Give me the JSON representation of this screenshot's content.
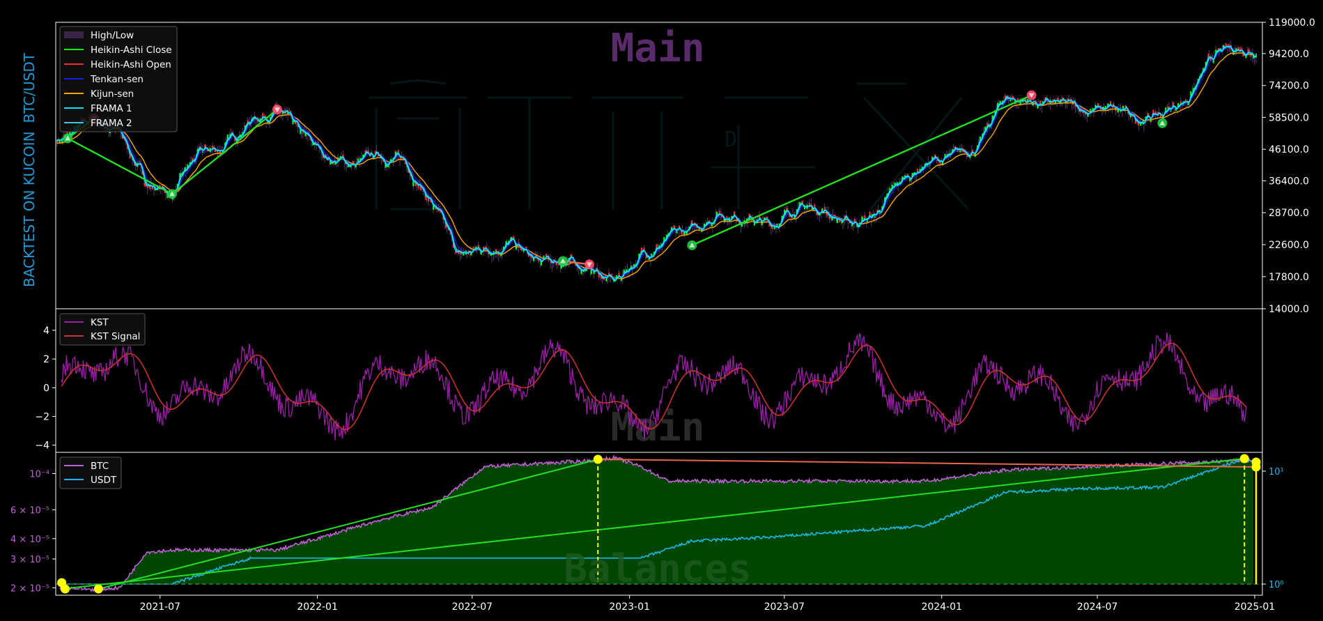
{
  "side_title": {
    "prefix": "BACKTEST ON KUCOIN",
    "pair": "BTC/USDT"
  },
  "colors": {
    "background": "#000000",
    "frame": "#ffffff",
    "title_cyan": "#1e9bd7",
    "main_watermark": "#5a2a6b",
    "kst": "#9b1fa6",
    "kst_signal": "#c8312e",
    "btc": "#c062d6",
    "usdt": "#1fb8e8",
    "trade_line": "#22e022",
    "loss_line": "#e8664a",
    "fill_green": "#004d00",
    "marker_yellow": "#ffff00",
    "buy_marker": "#22cc44",
    "sell_marker": "#ff4d6d",
    "ha_close": "#00ff00",
    "ha_open": "#ff2a2a",
    "tenkan": "#1a1aff",
    "kijun": "#ffa500",
    "frama1": "#00e5ff",
    "frama2": "#40c8e0"
  },
  "chart_data": [
    {
      "type": "line",
      "panel": "price",
      "watermark": "Main",
      "yscale": "log",
      "ylim": [
        14000,
        119000
      ],
      "yticks": [
        "119000.0",
        "94200.0",
        "74200.0",
        "58500.0",
        "46100.0",
        "36400.0",
        "28700.0",
        "22600.0",
        "17800.0",
        "14000.0"
      ],
      "ytick_values": [
        119000,
        94200,
        74200,
        58500,
        46100,
        36400,
        28700,
        22600,
        17800,
        14000
      ],
      "legend_position": "upper-left",
      "legend": [
        "High/Low",
        "Heikin-Ashi Close",
        "Heikin-Ashi Open",
        "Tenkan-sen",
        "Kijun-sen",
        "FRAMA 1",
        "FRAMA 2"
      ],
      "series": [
        {
          "name": "Heikin-Ashi Close",
          "x": [
            "2021-03",
            "2021-04",
            "2021-05",
            "2021-06",
            "2021-07",
            "2021-08",
            "2021-09",
            "2021-10",
            "2021-11",
            "2021-12",
            "2022-01",
            "2022-02",
            "2022-03",
            "2022-04",
            "2022-05",
            "2022-06",
            "2022-07",
            "2022-08",
            "2022-09",
            "2022-10",
            "2022-11",
            "2022-12",
            "2023-01",
            "2023-02",
            "2023-03",
            "2023-04",
            "2023-05",
            "2023-06",
            "2023-07",
            "2023-08",
            "2023-09",
            "2023-10",
            "2023-11",
            "2023-12",
            "2024-01",
            "2024-02",
            "2024-03",
            "2024-04",
            "2024-05",
            "2024-06",
            "2024-07",
            "2024-08",
            "2024-09",
            "2024-10",
            "2024-11",
            "2024-12"
          ],
          "values": [
            50000,
            58000,
            52000,
            36000,
            33000,
            44000,
            47000,
            58000,
            62000,
            50000,
            43000,
            41000,
            44000,
            42000,
            31000,
            20500,
            22000,
            23000,
            19500,
            20000,
            19000,
            17000,
            21000,
            23500,
            25000,
            29000,
            28000,
            26000,
            30000,
            29500,
            26500,
            28000,
            36000,
            42000,
            43000,
            48000,
            68000,
            66000,
            64000,
            62000,
            62000,
            58000,
            60000,
            68000,
            92000,
            98000
          ]
        }
      ],
      "trades": [
        {
          "type": "buy",
          "date": "2021-03",
          "price": 50000
        },
        {
          "type": "sell",
          "date": "2021-04",
          "price": 58000
        },
        {
          "type": "buy",
          "date": "2021-07",
          "price": 33000
        },
        {
          "type": "sell",
          "date": "2021-11",
          "price": 62000
        },
        {
          "type": "buy",
          "date": "2022-10",
          "price": 20000
        },
        {
          "type": "sell",
          "date": "2022-11",
          "price": 19500
        },
        {
          "type": "buy",
          "date": "2023-03",
          "price": 22500
        },
        {
          "type": "sell",
          "date": "2024-04",
          "price": 69000
        },
        {
          "type": "buy",
          "date": "2024-09",
          "price": 56000
        }
      ]
    },
    {
      "type": "line",
      "panel": "kst",
      "watermark": "Main",
      "ylim": [
        -4.5,
        5.5
      ],
      "yticks": [
        "4",
        "2",
        "0",
        "−2",
        "−4"
      ],
      "ytick_values": [
        4,
        2,
        0,
        -2,
        -4
      ],
      "legend_position": "upper-left",
      "series": [
        {
          "name": "KST"
        },
        {
          "name": "KST Signal"
        }
      ]
    },
    {
      "type": "area",
      "panel": "balances",
      "watermark": "Balances",
      "yscale": "log",
      "ylim_left": [
        1.8e-05,
        0.000135
      ],
      "yticks_left": [
        "10⁻⁴",
        "6 × 10⁻⁵",
        "4 × 10⁻⁵",
        "3 × 10⁻⁵",
        "2 × 10⁻⁵"
      ],
      "ytick_left_values": [
        0.0001,
        6e-05,
        4e-05,
        3e-05,
        2e-05
      ],
      "yticks_right": [
        "10¹",
        "10⁰"
      ],
      "ytick_right_values": [
        10,
        1
      ],
      "legend_position": "upper-left",
      "x_ticks": [
        "2021-07",
        "2022-01",
        "2022-07",
        "2023-01",
        "2023-07",
        "2024-01",
        "2024-07",
        "2025-01"
      ],
      "series": [
        {
          "name": "BTC",
          "x": [
            "2021-03",
            "2021-04",
            "2021-05",
            "2021-06",
            "2021-07",
            "2021-09",
            "2021-11",
            "2022-01",
            "2022-03",
            "2022-05",
            "2022-07",
            "2022-09",
            "2022-11",
            "2022-12",
            "2023-01",
            "2023-02",
            "2023-06",
            "2023-12",
            "2024-03",
            "2024-06",
            "2024-09",
            "2024-12"
          ],
          "values": [
            2e-05,
            1.95e-05,
            2e-05,
            3.3e-05,
            3.4e-05,
            3.4e-05,
            3.4e-05,
            4.2e-05,
            5.2e-05,
            6.2e-05,
            0.00011,
            0.000115,
            0.00012,
            0.000125,
            0.00011,
            9e-05,
            9e-05,
            9e-05,
            0.000105,
            0.00011,
            0.000115,
            0.00012
          ]
        },
        {
          "name": "USDT",
          "x": [
            "2021-03",
            "2021-04",
            "2021-07",
            "2021-10",
            "2022-01",
            "2022-07",
            "2023-01",
            "2023-03",
            "2023-06",
            "2023-12",
            "2024-03",
            "2024-06",
            "2024-09",
            "2024-12"
          ],
          "values": [
            1.0,
            1.0,
            1.0,
            1.7,
            1.7,
            1.7,
            1.7,
            2.4,
            2.6,
            3.3,
            6.5,
            7.0,
            7.2,
            12.5
          ]
        }
      ]
    }
  ]
}
